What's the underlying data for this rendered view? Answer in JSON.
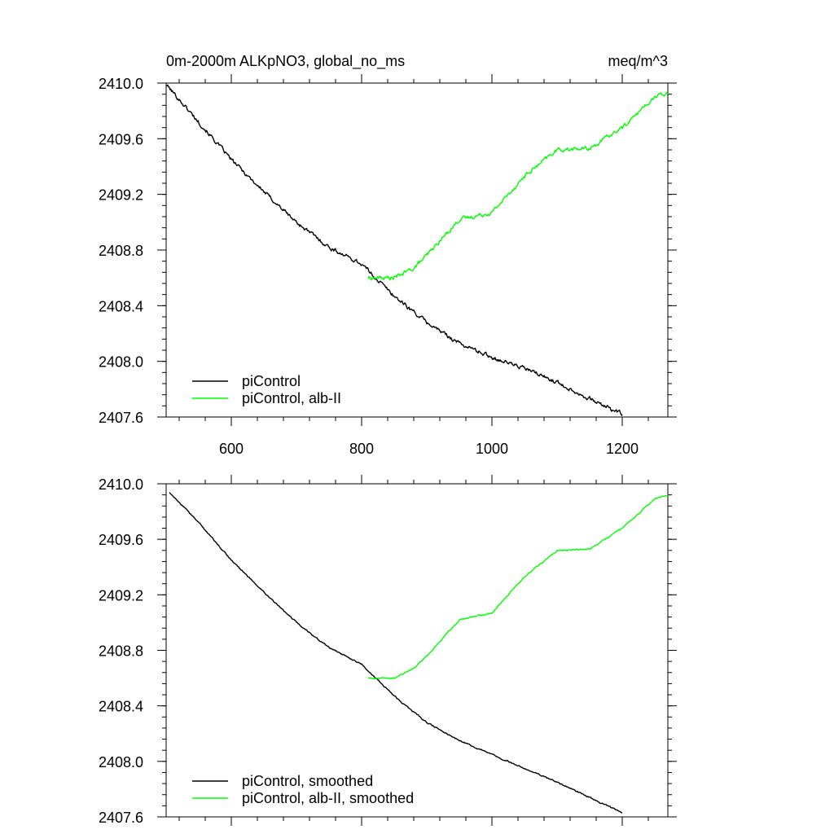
{
  "colors": {
    "frame": "#000000",
    "series_control": "#000000",
    "series_albII": "#00ff00",
    "background": "#ffffff"
  },
  "chart_data": [
    {
      "type": "line",
      "title_left": "0m-2000m ALKpNO3, global_no_ms",
      "title_right": "meq/m^3",
      "xlabel": "",
      "ylabel": "",
      "xlim": [
        500,
        1270
      ],
      "ylim": [
        2407.6,
        2410.0
      ],
      "x_ticks": [
        600,
        800,
        1000,
        1200
      ],
      "x_tick_labels": [
        "600",
        "800",
        "1000",
        "1200"
      ],
      "y_ticks": [
        2407.6,
        2408.0,
        2408.4,
        2408.8,
        2409.2,
        2409.6,
        2410.0
      ],
      "y_tick_labels": [
        "2407.6",
        "2408.0",
        "2408.4",
        "2408.8",
        "2409.2",
        "2409.6",
        "2410.0"
      ],
      "show_x_labels": true,
      "legend_position": "bottom-left",
      "series": [
        {
          "name": "piControl",
          "color": "#000000",
          "noise": 0.012,
          "x": [
            500,
            550,
            600,
            650,
            700,
            750,
            800,
            850,
            900,
            950,
            1000,
            1050,
            1100,
            1150,
            1200
          ],
          "values": [
            2409.99,
            2409.72,
            2409.45,
            2409.22,
            2409.0,
            2408.82,
            2408.7,
            2408.47,
            2408.28,
            2408.13,
            2408.03,
            2407.95,
            2407.85,
            2407.73,
            2407.62
          ]
        },
        {
          "name": "piControl, alb-II",
          "color": "#00ff00",
          "noise": 0.012,
          "x": [
            810,
            850,
            880,
            900,
            950,
            1000,
            1050,
            1100,
            1150,
            1200,
            1250,
            1270
          ],
          "values": [
            2408.6,
            2408.6,
            2408.67,
            2408.76,
            2409.02,
            2409.07,
            2409.33,
            2409.52,
            2409.53,
            2409.68,
            2409.9,
            2409.93
          ]
        }
      ]
    },
    {
      "type": "line",
      "title_left": "",
      "title_right": "",
      "xlabel": "",
      "ylabel": "",
      "xlim": [
        500,
        1270
      ],
      "ylim": [
        2407.6,
        2410.0
      ],
      "x_ticks": [
        600,
        800,
        1000,
        1200
      ],
      "x_tick_labels": [],
      "y_ticks": [
        2407.6,
        2408.0,
        2408.4,
        2408.8,
        2409.2,
        2409.6,
        2410.0
      ],
      "y_tick_labels": [
        "2407.6",
        "2408.0",
        "2408.4",
        "2408.8",
        "2409.2",
        "2409.6",
        "2410.0"
      ],
      "show_x_labels": false,
      "legend_position": "bottom-left",
      "series": [
        {
          "name": "piControl, smoothed",
          "color": "#000000",
          "noise": 0.004,
          "x": [
            505,
            550,
            600,
            650,
            700,
            750,
            800,
            850,
            900,
            950,
            1000,
            1050,
            1100,
            1150,
            1200
          ],
          "values": [
            2409.94,
            2409.72,
            2409.45,
            2409.22,
            2409.0,
            2408.82,
            2408.7,
            2408.47,
            2408.28,
            2408.15,
            2408.05,
            2407.95,
            2407.85,
            2407.74,
            2407.63
          ]
        },
        {
          "name": "piControl, alb-II, smoothed",
          "color": "#00ff00",
          "noise": 0.004,
          "x": [
            810,
            850,
            880,
            900,
            950,
            1000,
            1050,
            1100,
            1150,
            1200,
            1250,
            1270
          ],
          "values": [
            2408.6,
            2408.6,
            2408.67,
            2408.76,
            2409.02,
            2409.07,
            2409.33,
            2409.52,
            2409.53,
            2409.68,
            2409.89,
            2409.92
          ]
        }
      ]
    }
  ]
}
